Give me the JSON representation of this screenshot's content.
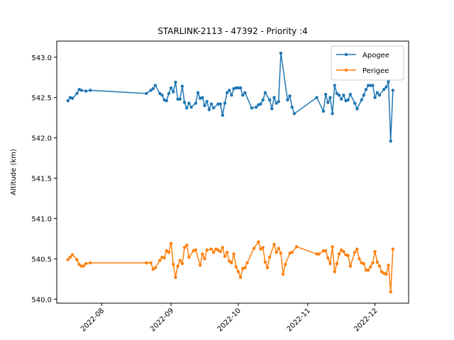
{
  "chart_data": {
    "type": "line",
    "title": "STARLINK-2113 - 47392 - Priority :4",
    "xlabel": "",
    "ylabel": "Altitude (km)",
    "xlim": [
      "2022-07-12",
      "2022-12-16"
    ],
    "ylim": [
      539.95,
      543.2
    ],
    "yticks": [
      540.0,
      540.5,
      541.0,
      541.5,
      542.0,
      542.5,
      543.0
    ],
    "ytick_labels": [
      "540.0",
      "540.5",
      "541.0",
      "541.5",
      "542.0",
      "542.5",
      "543.0"
    ],
    "xticks": [
      "2022-08-01",
      "2022-09-01",
      "2022-10-01",
      "2022-11-01",
      "2022-12-01"
    ],
    "xtick_labels": [
      "2022-08",
      "2022-09",
      "2022-10",
      "2022-11",
      "2022-12"
    ],
    "grid": false,
    "legend": "top-right",
    "series": [
      {
        "name": "Apogee",
        "color": "#1f77b4",
        "points": [
          [
            "2022-07-17",
            542.46
          ],
          [
            "2022-07-18",
            542.5
          ],
          [
            "2022-07-19",
            542.49
          ],
          [
            "2022-07-21",
            542.55
          ],
          [
            "2022-07-22",
            542.6
          ],
          [
            "2022-07-23",
            542.59
          ],
          [
            "2022-07-25",
            542.58
          ],
          [
            "2022-07-27",
            542.59
          ],
          [
            "2022-08-21",
            542.55
          ],
          [
            "2022-08-23",
            542.59
          ],
          [
            "2022-08-24",
            542.61
          ],
          [
            "2022-08-25",
            542.65
          ],
          [
            "2022-08-27",
            542.55
          ],
          [
            "2022-08-28",
            542.53
          ],
          [
            "2022-08-29",
            542.47
          ],
          [
            "2022-08-30",
            542.46
          ],
          [
            "2022-08-31",
            542.55
          ],
          [
            "2022-09-01",
            542.62
          ],
          [
            "2022-09-02",
            542.57
          ],
          [
            "2022-09-03",
            542.69
          ],
          [
            "2022-09-04",
            542.48
          ],
          [
            "2022-09-05",
            542.48
          ],
          [
            "2022-09-06",
            542.64
          ],
          [
            "2022-09-07",
            542.44
          ],
          [
            "2022-09-08",
            542.37
          ],
          [
            "2022-09-09",
            542.43
          ],
          [
            "2022-09-10",
            542.38
          ],
          [
            "2022-09-12",
            542.43
          ],
          [
            "2022-09-13",
            542.56
          ],
          [
            "2022-09-14",
            542.49
          ],
          [
            "2022-09-15",
            542.5
          ],
          [
            "2022-09-16",
            542.4
          ],
          [
            "2022-09-17",
            542.45
          ],
          [
            "2022-09-18",
            542.35
          ],
          [
            "2022-09-19",
            542.42
          ],
          [
            "2022-09-20",
            542.37
          ],
          [
            "2022-09-22",
            542.42
          ],
          [
            "2022-09-23",
            542.42
          ],
          [
            "2022-09-24",
            542.28
          ],
          [
            "2022-09-25",
            542.43
          ],
          [
            "2022-09-26",
            542.56
          ],
          [
            "2022-09-27",
            542.59
          ],
          [
            "2022-09-28",
            542.53
          ],
          [
            "2022-09-29",
            542.61
          ],
          [
            "2022-09-30",
            542.62
          ],
          [
            "2022-10-01",
            542.62
          ],
          [
            "2022-10-02",
            542.62
          ],
          [
            "2022-10-03",
            542.53
          ],
          [
            "2022-10-04",
            542.56
          ],
          [
            "2022-10-07",
            542.37
          ],
          [
            "2022-10-09",
            542.38
          ],
          [
            "2022-10-10",
            542.41
          ],
          [
            "2022-10-11",
            542.42
          ],
          [
            "2022-10-12",
            542.47
          ],
          [
            "2022-10-13",
            542.56
          ],
          [
            "2022-10-15",
            542.47
          ],
          [
            "2022-10-16",
            542.36
          ],
          [
            "2022-10-17",
            542.5
          ],
          [
            "2022-10-18",
            542.43
          ],
          [
            "2022-10-19",
            542.45
          ],
          [
            "2022-10-20",
            543.05
          ],
          [
            "2022-10-23",
            542.47
          ],
          [
            "2022-10-24",
            542.52
          ],
          [
            "2022-10-25",
            542.38
          ],
          [
            "2022-10-26",
            542.3
          ],
          [
            "2022-11-05",
            542.5
          ],
          [
            "2022-11-08",
            542.33
          ],
          [
            "2022-11-09",
            542.54
          ],
          [
            "2022-11-10",
            542.44
          ],
          [
            "2022-11-11",
            542.5
          ],
          [
            "2022-11-12",
            542.3
          ],
          [
            "2022-11-13",
            542.65
          ],
          [
            "2022-11-14",
            542.55
          ],
          [
            "2022-11-15",
            542.53
          ],
          [
            "2022-11-16",
            542.48
          ],
          [
            "2022-11-17",
            542.53
          ],
          [
            "2022-11-18",
            542.46
          ],
          [
            "2022-11-19",
            542.47
          ],
          [
            "2022-11-20",
            542.54
          ],
          [
            "2022-11-22",
            542.43
          ],
          [
            "2022-11-23",
            542.36
          ],
          [
            "2022-11-25",
            542.47
          ],
          [
            "2022-11-26",
            542.53
          ],
          [
            "2022-11-27",
            542.6
          ],
          [
            "2022-11-28",
            542.65
          ],
          [
            "2022-11-29",
            542.65
          ],
          [
            "2022-11-30",
            542.65
          ],
          [
            "2022-12-01",
            542.5
          ],
          [
            "2022-12-02",
            542.56
          ],
          [
            "2022-12-03",
            542.53
          ],
          [
            "2022-12-05",
            542.6
          ],
          [
            "2022-12-06",
            542.63
          ],
          [
            "2022-12-07",
            542.7
          ],
          [
            "2022-12-08",
            541.96
          ],
          [
            "2022-12-09",
            542.59
          ]
        ]
      },
      {
        "name": "Perigee",
        "color": "#ff7f0e",
        "points": [
          [
            "2022-07-17",
            540.49
          ],
          [
            "2022-07-18",
            540.52
          ],
          [
            "2022-07-19",
            540.55
          ],
          [
            "2022-07-21",
            540.49
          ],
          [
            "2022-07-22",
            540.43
          ],
          [
            "2022-07-23",
            540.41
          ],
          [
            "2022-07-24",
            540.41
          ],
          [
            "2022-07-25",
            540.44
          ],
          [
            "2022-07-27",
            540.45
          ],
          [
            "2022-08-21",
            540.45
          ],
          [
            "2022-08-23",
            540.45
          ],
          [
            "2022-08-24",
            540.37
          ],
          [
            "2022-08-25",
            540.39
          ],
          [
            "2022-08-27",
            540.48
          ],
          [
            "2022-08-28",
            540.52
          ],
          [
            "2022-08-29",
            540.51
          ],
          [
            "2022-08-30",
            540.6
          ],
          [
            "2022-08-31",
            540.58
          ],
          [
            "2022-09-01",
            540.69
          ],
          [
            "2022-09-02",
            540.43
          ],
          [
            "2022-09-03",
            540.27
          ],
          [
            "2022-09-04",
            540.41
          ],
          [
            "2022-09-05",
            540.48
          ],
          [
            "2022-09-06",
            540.44
          ],
          [
            "2022-09-07",
            540.64
          ],
          [
            "2022-09-08",
            540.67
          ],
          [
            "2022-09-09",
            540.52
          ],
          [
            "2022-09-11",
            540.6
          ],
          [
            "2022-09-12",
            540.61
          ],
          [
            "2022-09-14",
            540.42
          ],
          [
            "2022-09-15",
            540.56
          ],
          [
            "2022-09-16",
            540.5
          ],
          [
            "2022-09-17",
            540.61
          ],
          [
            "2022-09-19",
            540.62
          ],
          [
            "2022-09-20",
            540.58
          ],
          [
            "2022-09-21",
            540.62
          ],
          [
            "2022-09-22",
            540.61
          ],
          [
            "2022-09-23",
            540.59
          ],
          [
            "2022-09-24",
            540.64
          ],
          [
            "2022-09-25",
            540.53
          ],
          [
            "2022-09-26",
            540.58
          ],
          [
            "2022-09-27",
            540.47
          ],
          [
            "2022-09-28",
            540.45
          ],
          [
            "2022-09-29",
            540.56
          ],
          [
            "2022-09-30",
            540.4
          ],
          [
            "2022-10-01",
            540.34
          ],
          [
            "2022-10-02",
            540.27
          ],
          [
            "2022-10-03",
            540.38
          ],
          [
            "2022-10-04",
            540.39
          ],
          [
            "2022-10-05",
            540.45
          ],
          [
            "2022-10-08",
            540.63
          ],
          [
            "2022-10-10",
            540.71
          ],
          [
            "2022-10-11",
            540.62
          ],
          [
            "2022-10-12",
            540.64
          ],
          [
            "2022-10-13",
            540.46
          ],
          [
            "2022-10-14",
            540.39
          ],
          [
            "2022-10-15",
            540.52
          ],
          [
            "2022-10-17",
            540.68
          ],
          [
            "2022-10-18",
            540.58
          ],
          [
            "2022-10-19",
            540.63
          ],
          [
            "2022-10-20",
            540.57
          ],
          [
            "2022-10-21",
            540.31
          ],
          [
            "2022-10-22",
            540.43
          ],
          [
            "2022-10-24",
            540.57
          ],
          [
            "2022-10-25",
            540.58
          ],
          [
            "2022-10-27",
            540.65
          ],
          [
            "2022-11-05",
            540.56
          ],
          [
            "2022-11-06",
            540.56
          ],
          [
            "2022-11-08",
            540.6
          ],
          [
            "2022-11-09",
            540.6
          ],
          [
            "2022-11-10",
            540.51
          ],
          [
            "2022-11-11",
            540.44
          ],
          [
            "2022-11-12",
            540.65
          ],
          [
            "2022-11-13",
            540.34
          ],
          [
            "2022-11-14",
            540.44
          ],
          [
            "2022-11-15",
            540.56
          ],
          [
            "2022-11-16",
            540.61
          ],
          [
            "2022-11-17",
            540.59
          ],
          [
            "2022-11-18",
            540.55
          ],
          [
            "2022-11-19",
            540.54
          ],
          [
            "2022-11-20",
            540.41
          ],
          [
            "2022-11-22",
            540.58
          ],
          [
            "2022-11-23",
            540.62
          ],
          [
            "2022-11-24",
            540.5
          ],
          [
            "2022-11-25",
            540.45
          ],
          [
            "2022-11-26",
            540.44
          ],
          [
            "2022-11-27",
            540.36
          ],
          [
            "2022-11-28",
            540.36
          ],
          [
            "2022-11-29",
            540.4
          ],
          [
            "2022-11-30",
            540.45
          ],
          [
            "2022-12-01",
            540.59
          ],
          [
            "2022-12-02",
            540.46
          ],
          [
            "2022-12-03",
            540.41
          ],
          [
            "2022-12-04",
            540.34
          ],
          [
            "2022-12-05",
            540.32
          ],
          [
            "2022-12-06",
            540.31
          ],
          [
            "2022-12-07",
            540.42
          ],
          [
            "2022-12-08",
            540.09
          ],
          [
            "2022-12-09",
            540.62
          ]
        ]
      }
    ]
  }
}
